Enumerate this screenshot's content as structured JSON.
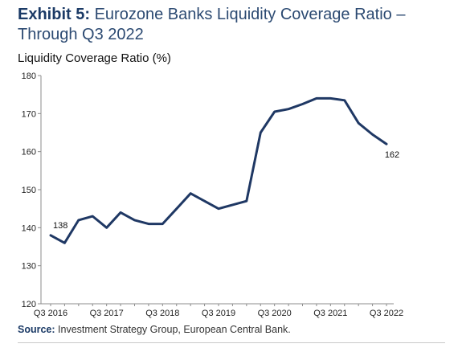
{
  "header": {
    "lead": "Exhibit 5:",
    "text": " Eurozone Banks Liquidity Coverage Ratio – Through Q3 2022"
  },
  "footer": {
    "source_label": "Source:",
    "source_text": " Investment Strategy Group, European Central Bank."
  },
  "chart_data": {
    "type": "line",
    "ylabel": "Liquidity Coverage Ratio (%)",
    "ylim": [
      120,
      180
    ],
    "y_ticks": [
      120,
      130,
      140,
      150,
      160,
      170,
      180
    ],
    "x_tick_labels": [
      "Q3 2016",
      "Q3 2017",
      "Q3 2018",
      "Q3 2019",
      "Q3 2020",
      "Q3 2021",
      "Q3 2022"
    ],
    "x": [
      "Q3 2016",
      "Q4 2016",
      "Q1 2017",
      "Q2 2017",
      "Q3 2017",
      "Q4 2017",
      "Q1 2018",
      "Q2 2018",
      "Q3 2018",
      "Q4 2018",
      "Q1 2019",
      "Q2 2019",
      "Q3 2019",
      "Q4 2019",
      "Q1 2020",
      "Q2 2020",
      "Q3 2020",
      "Q4 2020",
      "Q1 2021",
      "Q2 2021",
      "Q3 2021",
      "Q4 2021",
      "Q1 2022",
      "Q2 2022",
      "Q3 2022"
    ],
    "series": [
      {
        "values": [
          138,
          136,
          142,
          143,
          140,
          144,
          142,
          141,
          141,
          145,
          149,
          147,
          145,
          146,
          147,
          165,
          170.5,
          171.2,
          172.5,
          174,
          174,
          173.5,
          167.5,
          164.5,
          162
        ]
      }
    ],
    "annotations": [
      {
        "index": 0,
        "text": "138"
      },
      {
        "index": 24,
        "text": "162"
      }
    ],
    "line_color": "#1f3864",
    "grid": false
  }
}
